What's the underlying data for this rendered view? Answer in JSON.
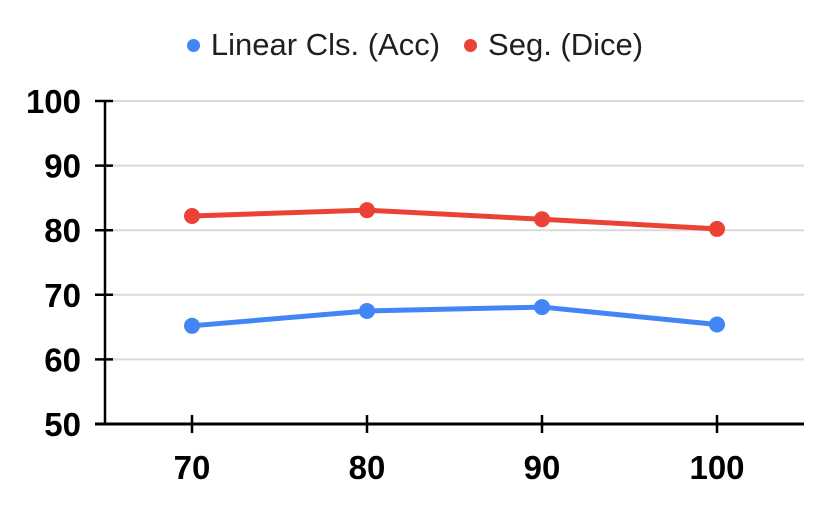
{
  "chart_data": {
    "type": "line",
    "x": [
      70,
      80,
      90,
      100
    ],
    "series": [
      {
        "name": "Linear Cls. (Acc)",
        "color": "#4285f4",
        "values": [
          65.2,
          67.5,
          68.1,
          65.4
        ]
      },
      {
        "name": "Seg. (Dice)",
        "color": "#ea4335",
        "values": [
          82.2,
          83.1,
          81.7,
          80.2
        ]
      }
    ],
    "title": "",
    "xlabel": "",
    "ylabel": "",
    "ylim": [
      50,
      100
    ],
    "yticks": [
      50,
      60,
      70,
      80,
      90,
      100
    ],
    "grid": "horizontal",
    "legend_position": "top"
  },
  "colors": {
    "background": "#ffffff",
    "axis": "#000000",
    "label": "#000000",
    "gridline": "#dadada",
    "legend_text": "#1f1f1f"
  }
}
